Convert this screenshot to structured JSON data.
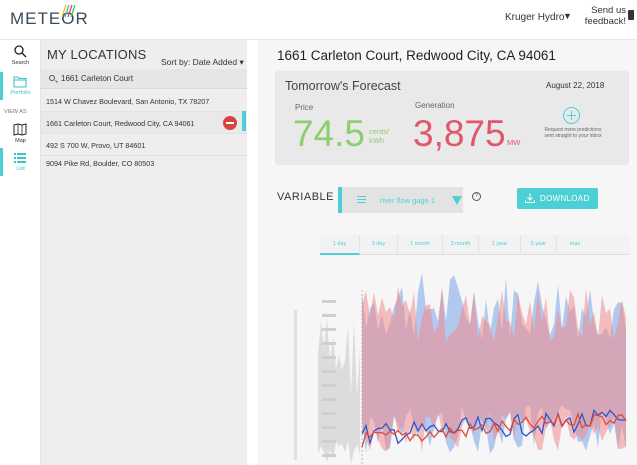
{
  "app": {
    "logo": "METEOR",
    "org": "Kruger Hydro",
    "feedback": "Send us feedback!"
  },
  "nav": {
    "search": "Search",
    "portfolio": "Portfolio",
    "view_as": "VIEW AS",
    "map": "Map",
    "list": "List"
  },
  "locations": {
    "title": "MY LOCATIONS",
    "sort": "Sort by: Date Added ▾",
    "search_value": "1661 Carleton Court",
    "items": [
      "1514 W Chavez Boulevard, San Antonio, TX 78207",
      "1661 Carleton Court, Redwood City, CA 94061",
      "492 S 700 W, Provo, UT 84601",
      "9094 Pike Rd, Boulder, CO 80503"
    ]
  },
  "main": {
    "address": "1661 Carleton Court, Redwood City, CA 94061",
    "forecast": {
      "title": "Tomorrow's Forecast",
      "date": "August 22, 2018",
      "price_label": "Price",
      "price_value": "74.5",
      "price_unit": "cents/ kWh",
      "generation_label": "Generation",
      "generation_value": "3,875",
      "generation_unit": "MW",
      "request_text": "Request more predictions sent straight to your inbox"
    },
    "variable_label": "VARIABLE",
    "variable_value": "river flow gage 1",
    "help": "?",
    "download": "DOWNLOAD",
    "tabs": [
      "1 day",
      "3 day",
      "1 month",
      "3 month",
      "1 year",
      "5 year",
      "max"
    ]
  },
  "colors": {
    "accent": "#4cd0d6",
    "price": "#8ccf6f",
    "generation": "#e2566a",
    "series_red": "#e04a3c",
    "series_blue": "#2f56c8"
  }
}
